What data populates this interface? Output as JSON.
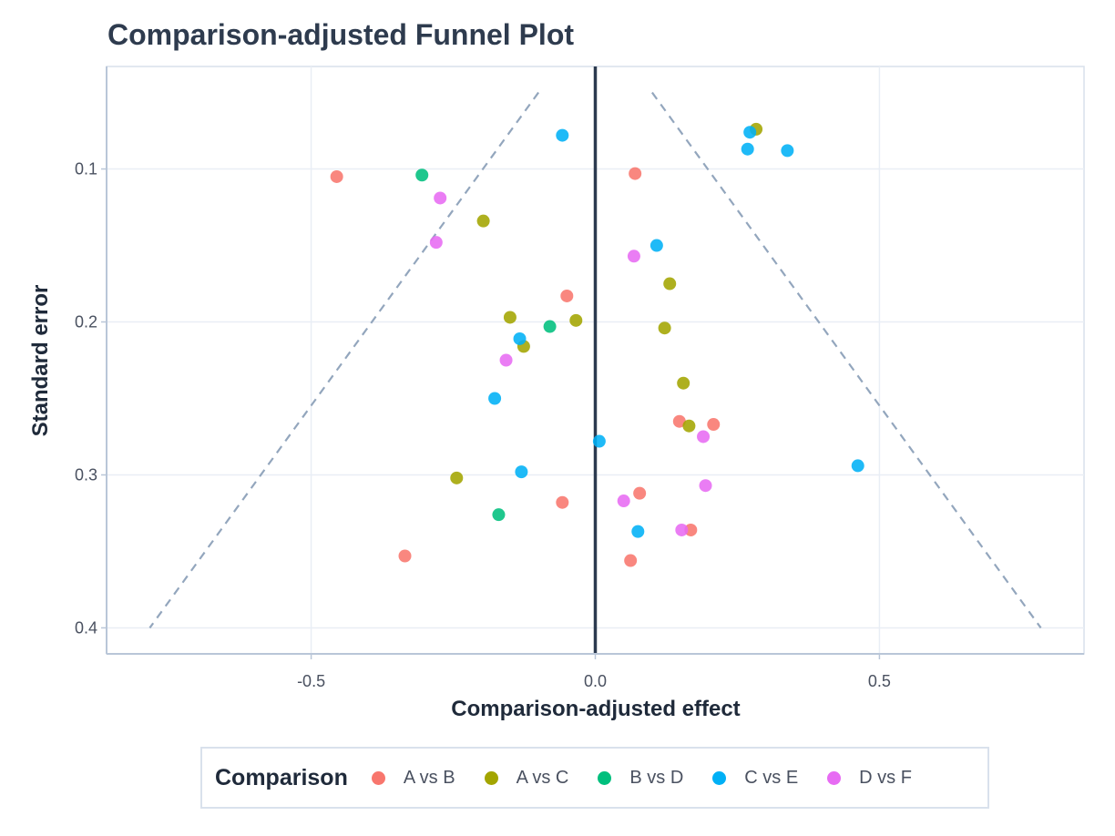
{
  "chart_data": {
    "type": "scatter",
    "title": "Comparison-adjusted Funnel Plot",
    "xlabel": "Comparison-adjusted effect",
    "ylabel": "Standard error",
    "xlim": [
      -0.86,
      0.86
    ],
    "ylim": [
      0.033,
      0.417
    ],
    "y_reversed": true,
    "x_ticks": [
      -0.5,
      0.0,
      0.5
    ],
    "x_tick_labels": [
      "-0.5",
      "0.0",
      "0.5"
    ],
    "y_ticks": [
      0.1,
      0.2,
      0.3,
      0.4
    ],
    "y_tick_labels": [
      "0.1",
      "0.2",
      "0.3",
      "0.4"
    ],
    "grid": true,
    "reference_line": {
      "x": 0.0
    },
    "funnel_lines": [
      {
        "x": [
          -0.1,
          -0.784
        ],
        "y": [
          0.05,
          0.4
        ]
      },
      {
        "x": [
          0.1,
          0.784
        ],
        "y": [
          0.05,
          0.4
        ]
      }
    ],
    "legend": {
      "title": "Comparison",
      "position": "bottom"
    },
    "series": [
      {
        "name": "A vs B",
        "color": "#F8766D",
        "points": [
          {
            "x": -0.455,
            "y": 0.105
          },
          {
            "x": 0.07,
            "y": 0.103
          },
          {
            "x": -0.05,
            "y": 0.183
          },
          {
            "x": 0.148,
            "y": 0.265
          },
          {
            "x": 0.208,
            "y": 0.267
          },
          {
            "x": 0.078,
            "y": 0.312
          },
          {
            "x": -0.058,
            "y": 0.318
          },
          {
            "x": 0.168,
            "y": 0.336
          },
          {
            "x": -0.335,
            "y": 0.353
          },
          {
            "x": 0.062,
            "y": 0.356
          }
        ]
      },
      {
        "name": "A vs C",
        "color": "#A3A500",
        "points": [
          {
            "x": 0.283,
            "y": 0.074
          },
          {
            "x": -0.197,
            "y": 0.134
          },
          {
            "x": 0.131,
            "y": 0.175
          },
          {
            "x": -0.15,
            "y": 0.197
          },
          {
            "x": -0.034,
            "y": 0.199
          },
          {
            "x": 0.122,
            "y": 0.204
          },
          {
            "x": -0.126,
            "y": 0.216
          },
          {
            "x": 0.155,
            "y": 0.24
          },
          {
            "x": 0.165,
            "y": 0.268
          },
          {
            "x": -0.244,
            "y": 0.302
          }
        ]
      },
      {
        "name": "B vs D",
        "color": "#00BF7D",
        "points": [
          {
            "x": -0.305,
            "y": 0.104
          },
          {
            "x": -0.08,
            "y": 0.203
          },
          {
            "x": -0.17,
            "y": 0.326
          }
        ]
      },
      {
        "name": "C vs E",
        "color": "#00B0F6",
        "points": [
          {
            "x": -0.058,
            "y": 0.078
          },
          {
            "x": 0.272,
            "y": 0.076
          },
          {
            "x": 0.268,
            "y": 0.087
          },
          {
            "x": 0.338,
            "y": 0.088
          },
          {
            "x": 0.108,
            "y": 0.15
          },
          {
            "x": -0.133,
            "y": 0.211
          },
          {
            "x": -0.177,
            "y": 0.25
          },
          {
            "x": 0.007,
            "y": 0.278
          },
          {
            "x": -0.13,
            "y": 0.298
          },
          {
            "x": 0.462,
            "y": 0.294
          },
          {
            "x": 0.075,
            "y": 0.337
          }
        ]
      },
      {
        "name": "D vs F",
        "color": "#E76BF3",
        "points": [
          {
            "x": -0.273,
            "y": 0.119
          },
          {
            "x": -0.28,
            "y": 0.148
          },
          {
            "x": 0.068,
            "y": 0.157
          },
          {
            "x": -0.157,
            "y": 0.225
          },
          {
            "x": 0.19,
            "y": 0.275
          },
          {
            "x": 0.194,
            "y": 0.307
          },
          {
            "x": 0.05,
            "y": 0.317
          },
          {
            "x": 0.152,
            "y": 0.336
          }
        ]
      }
    ]
  }
}
